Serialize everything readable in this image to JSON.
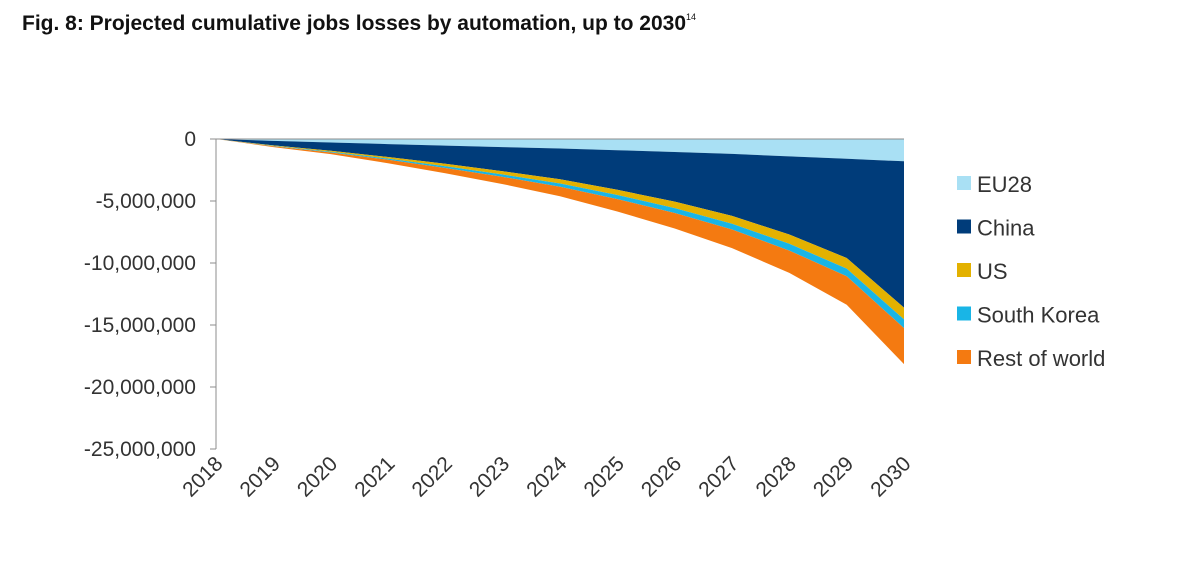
{
  "title": "Fig. 8: Projected cumulative jobs losses by automation, up to 2030",
  "title_footnote": "14",
  "chart_data": {
    "type": "area",
    "stacked": true,
    "x": [
      "2018",
      "2019",
      "2020",
      "2021",
      "2022",
      "2023",
      "2024",
      "2025",
      "2026",
      "2027",
      "2028",
      "2029",
      "2030"
    ],
    "ylim": [
      -25000000,
      0
    ],
    "yticks": [
      0,
      -5000000,
      -10000000,
      -15000000,
      -20000000,
      -25000000
    ],
    "ytick_labels": [
      "0",
      "-5,000,000",
      "-10,000,000",
      "-15,000,000",
      "-20,000,000",
      "-25,000,000"
    ],
    "legend_position": "right",
    "grid": false,
    "series": [
      {
        "name": "EU28",
        "color": "#a9e0f4",
        "values": [
          0,
          -150000,
          -280000,
          -410000,
          -530000,
          -650000,
          -770000,
          -900000,
          -1050000,
          -1200000,
          -1400000,
          -1600000,
          -1800000
        ]
      },
      {
        "name": "China",
        "color": "#003c7a",
        "values": [
          0,
          -370000,
          -670000,
          -1040000,
          -1470000,
          -1950000,
          -2480000,
          -3200000,
          -4000000,
          -5000000,
          -6300000,
          -8000000,
          -11800000
        ]
      },
      {
        "name": "US",
        "color": "#e3b100",
        "values": [
          0,
          -40000,
          -80000,
          -130000,
          -190000,
          -260000,
          -340000,
          -420000,
          -520000,
          -630000,
          -750000,
          -850000,
          -950000
        ]
      },
      {
        "name": "South Korea",
        "color": "#19b5e6",
        "values": [
          0,
          -30000,
          -60000,
          -100000,
          -150000,
          -200000,
          -260000,
          -330000,
          -400000,
          -470000,
          -550000,
          -620000,
          -700000
        ]
      },
      {
        "name": "Rest of world",
        "color": "#f47a11",
        "values": [
          0,
          -60000,
          -130000,
          -270000,
          -420000,
          -580000,
          -760000,
          -1000000,
          -1250000,
          -1500000,
          -1800000,
          -2300000,
          -2900000
        ]
      }
    ]
  }
}
